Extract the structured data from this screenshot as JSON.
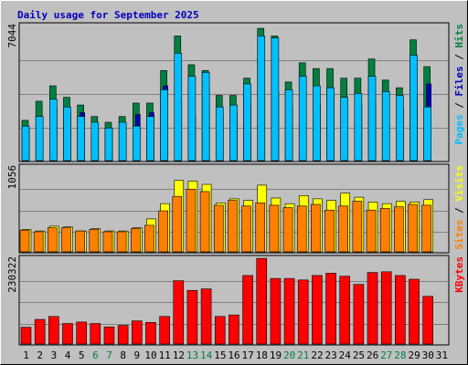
{
  "chart_data": {
    "type": "bar",
    "title": "Daily usage for September 2025",
    "categories": [
      "1",
      "2",
      "3",
      "4",
      "5",
      "6",
      "7",
      "8",
      "9",
      "10",
      "11",
      "12",
      "13",
      "14",
      "15",
      "16",
      "17",
      "18",
      "19",
      "20",
      "21",
      "22",
      "23",
      "24",
      "25",
      "26",
      "27",
      "28",
      "29",
      "30",
      "31"
    ],
    "weekend_days": [
      "6",
      "7",
      "13",
      "14",
      "20",
      "21",
      "27",
      "28"
    ],
    "colors": {
      "hits": "#008040",
      "files": "#0000c0",
      "pages": "#00c0ff",
      "visits": "#ffff00",
      "sites": "#ff8000",
      "kbytes": "#ff0000",
      "title": "#0000c0",
      "weekend_label": "#008040",
      "weekday_label": "#000000"
    },
    "panels": [
      {
        "id": "top",
        "ymax": 7044,
        "ymax_label": "7044",
        "ylabel_parts": [
          {
            "text": "Pages",
            "color": "#00c0ff"
          },
          {
            "text": " / ",
            "color": "#000000"
          },
          {
            "text": "Files",
            "color": "#0000c0"
          },
          {
            "text": " / ",
            "color": "#000000"
          },
          {
            "text": "Hits",
            "color": "#008040"
          }
        ],
        "series": [
          {
            "name": "Hits",
            "values": [
              2100,
              3100,
              3900,
              3300,
              2900,
              2300,
              2000,
              2300,
              3000,
              3000,
              4700,
              6500,
              5000,
              4700,
              3400,
              3400,
              4300,
              6900,
              6500,
              4100,
              5100,
              4800,
              4800,
              4300,
              4300,
              5300,
              4200,
              3800,
              6300,
              4900,
              0
            ]
          },
          {
            "name": "Files",
            "values": [
              1700,
              2200,
              2700,
              2500,
              2500,
              1700,
              1700,
              1900,
              2400,
              2500,
              3900,
              3200,
              2400,
              3800,
              2400,
              2500,
              2900,
              3300,
              3600,
              2800,
              2800,
              2900,
              3400,
              2800,
              2900,
              3200,
              2800,
              2700,
              3400,
              4000,
              0
            ]
          },
          {
            "name": "Pages",
            "values": [
              1800,
              2300,
              3200,
              2800,
              2300,
              2000,
              1700,
              2000,
              1800,
              2300,
              3700,
              5600,
              4400,
              4600,
              2800,
              2900,
              4000,
              6500,
              6400,
              3700,
              4400,
              3900,
              3800,
              3300,
              3500,
              4400,
              3600,
              3400,
              5500,
              2800,
              0
            ]
          }
        ]
      },
      {
        "id": "mid",
        "ymax": 1056,
        "ymax_label": "1056",
        "ylabel_parts": [
          {
            "text": "Sites",
            "color": "#ff8000"
          },
          {
            "text": " / ",
            "color": "#000000"
          },
          {
            "text": "Visits",
            "color": "#ffff00"
          }
        ],
        "series": [
          {
            "name": "Visits",
            "values": [
              280,
              260,
              320,
              310,
              260,
              290,
              260,
              260,
              300,
              410,
              600,
              890,
              880,
              840,
              610,
              660,
              640,
              830,
              670,
              600,
              700,
              660,
              640,
              730,
              680,
              620,
              600,
              630,
              620,
              650,
              0
            ]
          },
          {
            "name": "Sites",
            "values": [
              270,
              250,
              300,
              300,
              260,
              280,
              250,
              250,
              290,
              330,
              510,
              690,
              780,
              750,
              580,
              640,
              570,
              610,
              580,
              550,
              570,
              590,
              520,
              570,
              630,
              520,
              540,
              560,
              590,
              580,
              0
            ]
          }
        ]
      },
      {
        "id": "bot",
        "ymax": 230322,
        "ymax_label": "230322",
        "ylabel_parts": [
          {
            "text": "KBytes",
            "color": "#ff0000"
          }
        ],
        "series": [
          {
            "name": "KBytes",
            "values": [
              45000,
              66000,
              74000,
              55000,
              59000,
              55000,
              46000,
              50000,
              62000,
              58000,
              74000,
              170000,
              144000,
              148000,
              74000,
              78000,
              184000,
              230000,
              176000,
              176000,
              172000,
              184000,
              190000,
              182000,
              160000,
              192000,
              194000,
              184000,
              174000,
              128000,
              0
            ]
          }
        ]
      }
    ]
  }
}
